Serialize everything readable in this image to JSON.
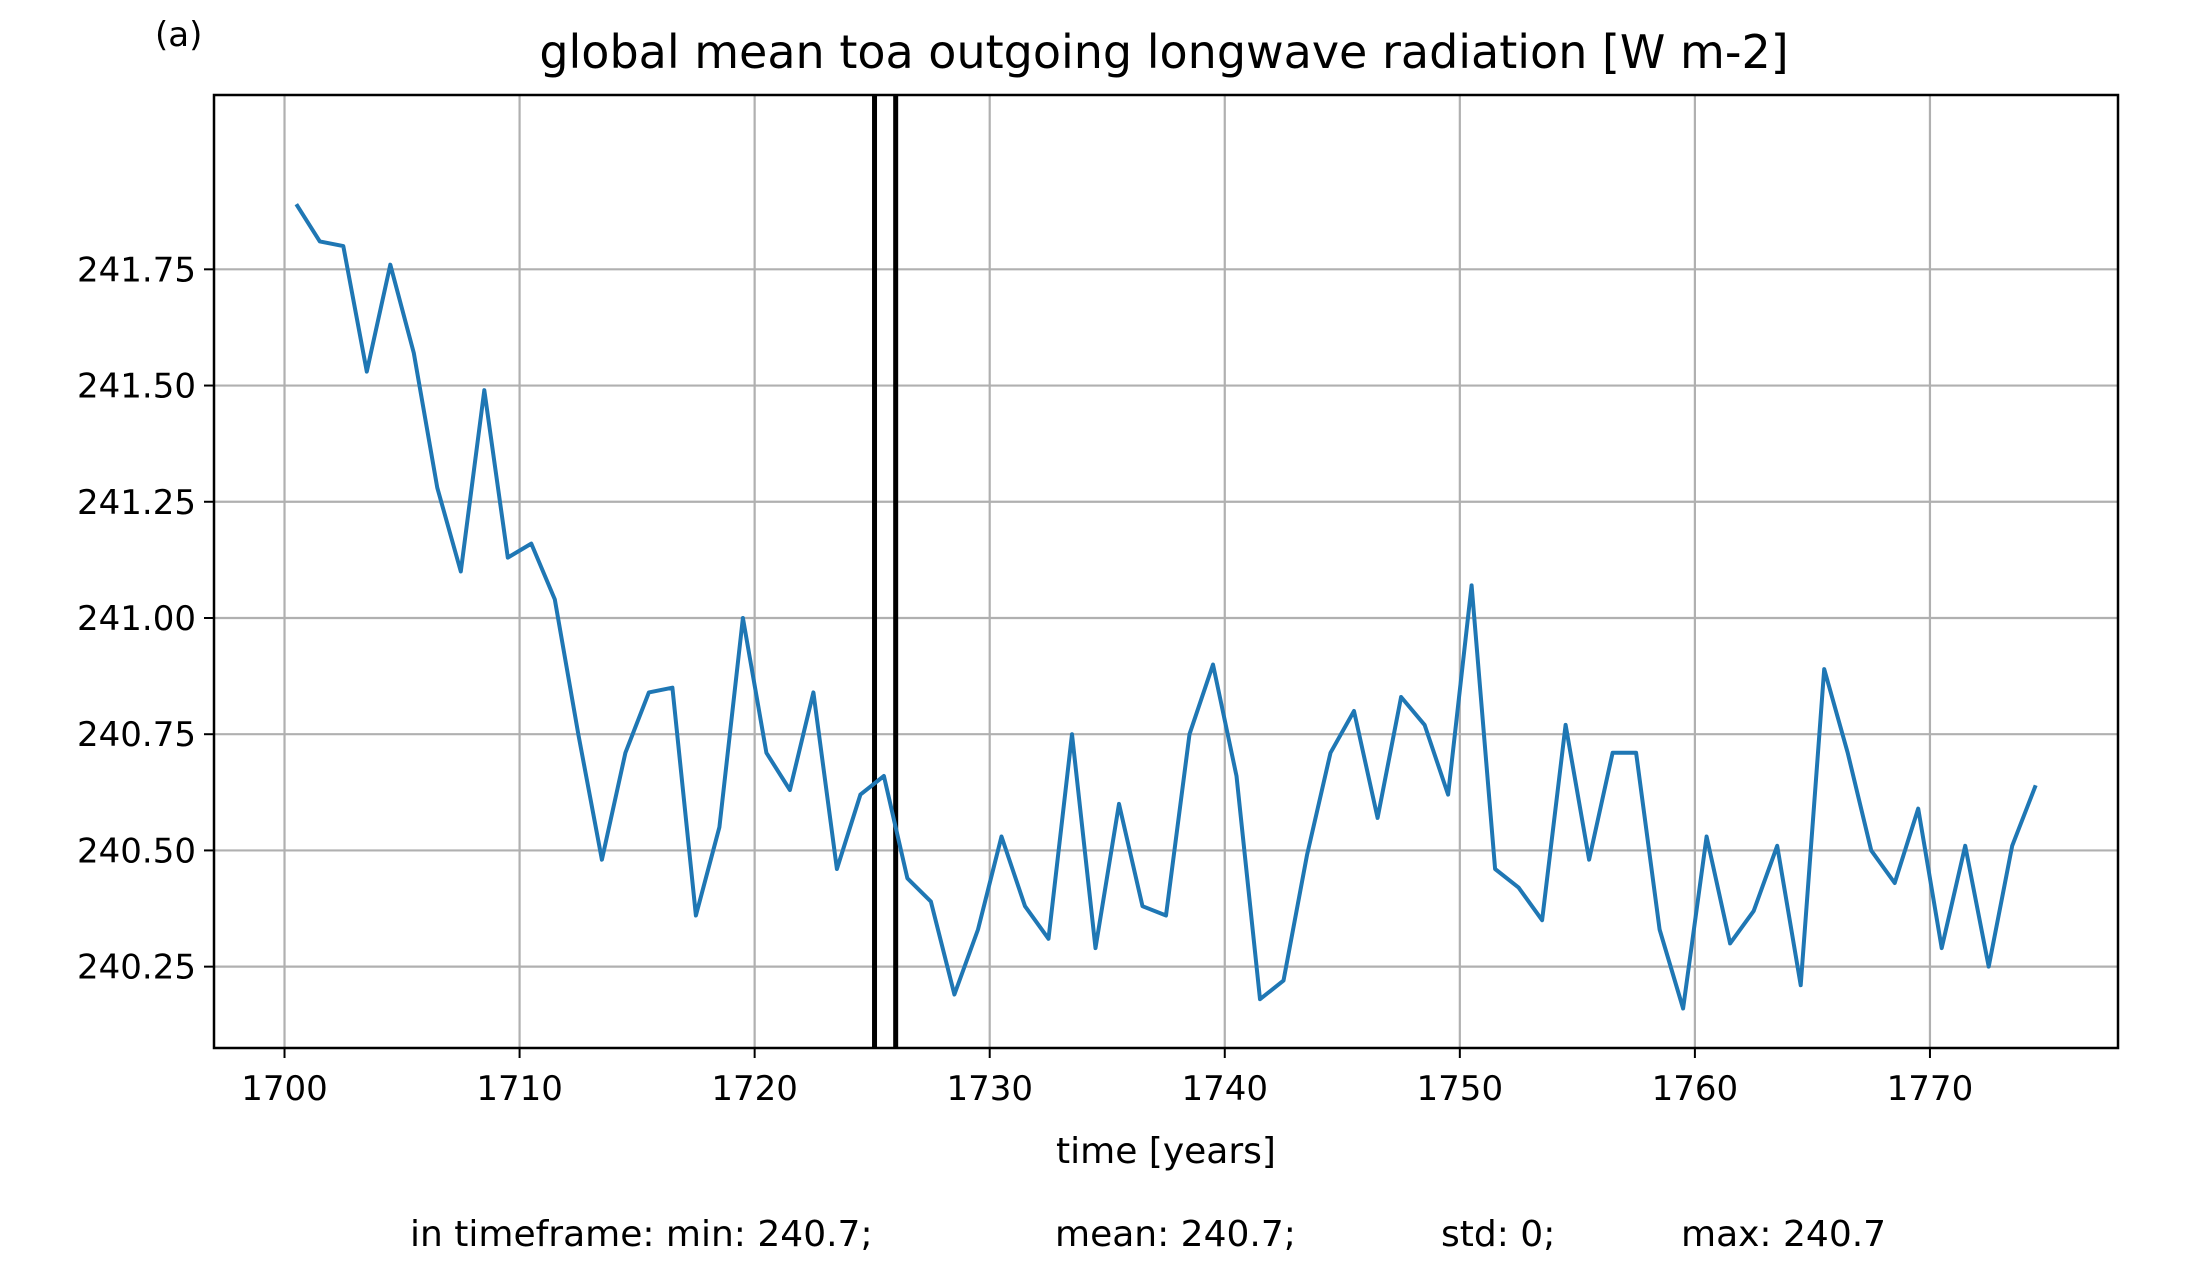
{
  "panel_label": "(a)",
  "chart_data": {
    "type": "line",
    "title": "global mean toa outgoing longwave radiation [W m-2]",
    "xlabel": "time [years]",
    "ylabel": "",
    "xlim": [
      1697,
      1778
    ],
    "ylim": [
      240.075,
      242.125
    ],
    "x_ticks": [
      1700,
      1710,
      1720,
      1730,
      1740,
      1750,
      1760,
      1770
    ],
    "y_ticks": [
      240.25,
      240.5,
      240.75,
      241.0,
      241.25,
      241.5,
      241.75
    ],
    "y_tick_labels": [
      "240.25",
      "240.50",
      "240.75",
      "241.00",
      "241.25",
      "241.50",
      "241.75"
    ],
    "grid": true,
    "line_color": "#1f77b4",
    "vline_color": "#000000",
    "vlines": [
      1725.1,
      1726.0
    ],
    "series": [
      {
        "x": [
          1700.5,
          1701.5,
          1702.5,
          1703.5,
          1704.5,
          1705.5,
          1706.5,
          1707.5,
          1708.5,
          1709.5,
          1710.5,
          1711.5,
          1712.5,
          1713.5,
          1714.5,
          1715.5,
          1716.5,
          1717.5,
          1718.5,
          1719.5,
          1720.5,
          1721.5,
          1722.5,
          1723.5,
          1724.5,
          1725.5,
          1726.5,
          1727.5,
          1728.5,
          1729.5,
          1730.5,
          1731.5,
          1732.5,
          1733.5,
          1734.5,
          1735.5,
          1736.5,
          1737.5,
          1738.5,
          1739.5,
          1740.5,
          1741.5,
          1742.5,
          1743.5,
          1744.5,
          1745.5,
          1746.5,
          1747.5,
          1748.5,
          1749.5,
          1750.5,
          1751.5,
          1752.5,
          1753.5,
          1754.5,
          1755.5,
          1756.5,
          1757.5,
          1758.5,
          1759.5,
          1760.5,
          1761.5,
          1762.5,
          1763.5,
          1764.5,
          1765.5,
          1766.5,
          1767.5,
          1768.5,
          1769.5,
          1770.5,
          1771.5,
          1772.5,
          1773.5,
          1774.5
        ],
        "values": [
          241.89,
          241.81,
          241.8,
          241.53,
          241.76,
          241.57,
          241.28,
          241.1,
          241.49,
          241.13,
          241.16,
          241.04,
          240.75,
          240.48,
          240.71,
          240.84,
          240.85,
          240.36,
          240.55,
          241.0,
          240.71,
          240.63,
          240.84,
          240.46,
          240.62,
          240.66,
          240.44,
          240.39,
          240.19,
          240.33,
          240.53,
          240.38,
          240.31,
          240.75,
          240.29,
          240.6,
          240.38,
          240.36,
          240.75,
          240.9,
          240.66,
          240.18,
          240.22,
          240.49,
          240.71,
          240.8,
          240.57,
          240.83,
          240.77,
          240.62,
          241.07,
          240.46,
          240.42,
          240.35,
          240.77,
          240.48,
          240.71,
          240.71,
          240.33,
          240.16,
          240.53,
          240.3,
          240.37,
          240.51,
          240.21,
          240.89,
          240.71,
          240.5,
          240.43,
          240.59,
          240.29,
          240.51,
          240.25,
          240.51,
          240.64
        ]
      }
    ]
  },
  "stats": {
    "min": "in timeframe: min: 240.7;",
    "mean": "mean: 240.7;",
    "std": "std: 0;",
    "max": "max: 240.7"
  }
}
